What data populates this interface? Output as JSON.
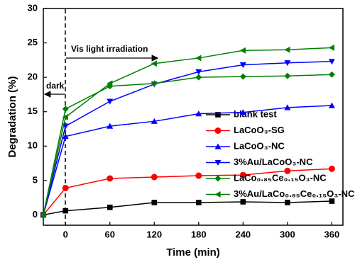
{
  "chart_data": {
    "type": "line",
    "x_label": "Time (min)",
    "y_label": "Degradation (%)",
    "annotations": {
      "dark": "dark",
      "light": "Vis light irradiation"
    },
    "x": [
      -30,
      0,
      60,
      120,
      180,
      240,
      300,
      360
    ],
    "series": [
      {
        "name": "blank test",
        "color": "#000000",
        "marker": "square",
        "values": [
          0,
          0.6,
          1.1,
          1.8,
          1.8,
          1.9,
          1.8,
          2.0
        ]
      },
      {
        "name": "LaCoO₃-SG",
        "color": "#ff0000",
        "marker": "circle",
        "values": [
          0,
          3.9,
          5.3,
          5.5,
          5.7,
          5.8,
          6.4,
          6.7
        ]
      },
      {
        "name": "LaCoO₃-NC",
        "color": "#0000ff",
        "marker": "triangle-up",
        "values": [
          0,
          11.4,
          12.9,
          13.6,
          14.7,
          14.9,
          15.6,
          15.9
        ]
      },
      {
        "name": "3%Au/LaCoO₃-NC",
        "color": "#0000ff",
        "marker": "triangle-down",
        "values": [
          0,
          12.9,
          16.5,
          19.0,
          20.8,
          21.8,
          22.1,
          22.3
        ]
      },
      {
        "name": "LaCo₀.₈₅Ce₀.₁₅O₃-NC",
        "color": "#008000",
        "marker": "diamond",
        "values": [
          0,
          15.4,
          18.7,
          19.1,
          20.0,
          20.1,
          20.2,
          20.4
        ]
      },
      {
        "name": "3%Au/LaCo₀.₈₅Ce₀.₁₅O₃-NC",
        "color": "#008000",
        "marker": "triangle-left",
        "values": [
          0,
          14.2,
          19.1,
          22.0,
          22.8,
          23.9,
          24.0,
          24.3
        ]
      }
    ],
    "xlim": [
      -30,
      375
    ],
    "xticks": [
      0,
      60,
      120,
      180,
      240,
      300,
      360
    ],
    "ylim": [
      -1.5,
      30
    ],
    "yticks": [
      0,
      5,
      10,
      15,
      20,
      25,
      30
    ],
    "grid": false
  }
}
